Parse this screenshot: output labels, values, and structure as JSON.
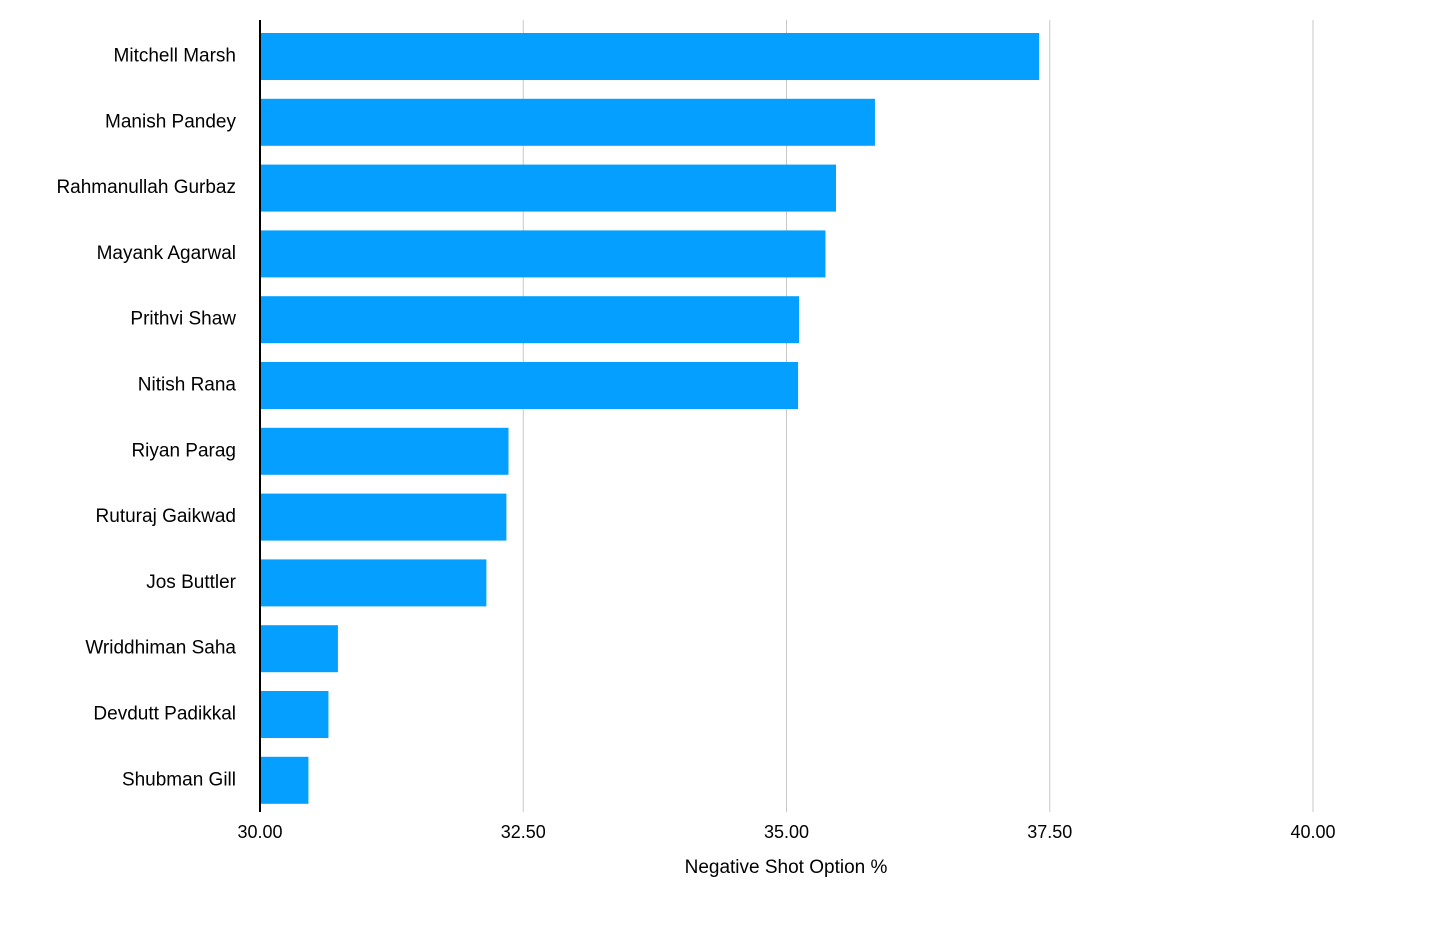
{
  "chart_data": {
    "type": "bar",
    "orientation": "horizontal",
    "categories": [
      "Mitchell Marsh",
      "Manish Pandey",
      "Rahmanullah Gurbaz",
      "Mayank Agarwal",
      "Prithvi Shaw",
      "Nitish Rana",
      "Riyan Parag",
      "Ruturaj Gaikwad",
      "Jos Buttler",
      "Wriddhiman Saha",
      "Devdutt Padikkal",
      "Shubman Gill"
    ],
    "values": [
      37.4,
      35.84,
      35.47,
      35.37,
      35.12,
      35.11,
      32.36,
      32.34,
      32.15,
      30.74,
      30.65,
      30.46
    ],
    "title": "",
    "xlabel": "Negative Shot Option %",
    "ylabel": "",
    "xlim": [
      30.0,
      40.0
    ],
    "xticks": [
      30.0,
      32.5,
      35.0,
      37.5,
      40.0
    ],
    "xtick_labels": [
      "30.00",
      "32.50",
      "35.00",
      "37.50",
      "40.00"
    ],
    "grid": "vertical",
    "legend": "none",
    "colors": {
      "bar": "#05A0FF",
      "grid": "#C8C8C8",
      "axis": "#000000"
    }
  }
}
